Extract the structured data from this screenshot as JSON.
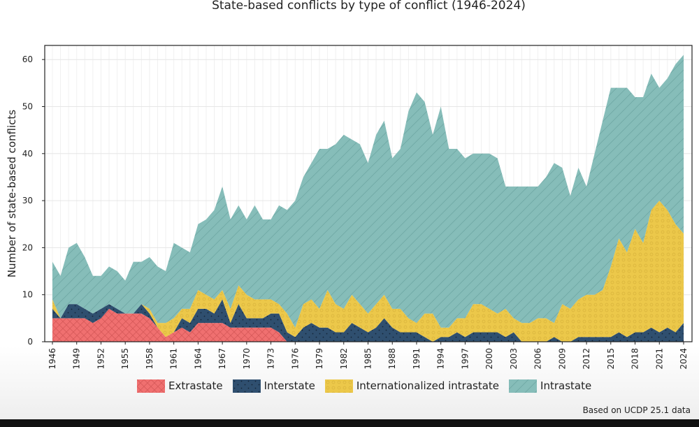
{
  "chart_data": {
    "type": "area",
    "stacked": true,
    "title": "State-based conflicts by type of conflict (1946-2024)",
    "xlabel": "",
    "ylabel": "Number of state-based conflicts",
    "x": [
      1946,
      1947,
      1948,
      1949,
      1950,
      1951,
      1952,
      1953,
      1954,
      1955,
      1956,
      1957,
      1958,
      1959,
      1960,
      1961,
      1962,
      1963,
      1964,
      1965,
      1966,
      1967,
      1968,
      1969,
      1970,
      1971,
      1972,
      1973,
      1974,
      1975,
      1976,
      1977,
      1978,
      1979,
      1980,
      1981,
      1982,
      1983,
      1984,
      1985,
      1986,
      1987,
      1988,
      1989,
      1990,
      1991,
      1992,
      1993,
      1994,
      1995,
      1996,
      1997,
      1998,
      1999,
      2000,
      2001,
      2002,
      2003,
      2004,
      2005,
      2006,
      2007,
      2008,
      2009,
      2010,
      2011,
      2012,
      2013,
      2014,
      2015,
      2016,
      2017,
      2018,
      2019,
      2020,
      2021,
      2022,
      2023,
      2024
    ],
    "ylim": [
      0,
      63
    ],
    "yticks": [
      0,
      10,
      20,
      30,
      40,
      50,
      60
    ],
    "xticks": [
      1946,
      1949,
      1952,
      1955,
      1958,
      1961,
      1964,
      1967,
      1970,
      1973,
      1976,
      1979,
      1982,
      1985,
      1988,
      1991,
      1994,
      1997,
      2000,
      2003,
      2006,
      2009,
      2012,
      2015,
      2018,
      2021,
      2024
    ],
    "grid": true,
    "legend_position": "bottom",
    "series": [
      {
        "name": "Extrastate",
        "color": "#f07070",
        "pattern": "crosshatch",
        "values": [
          5,
          5,
          5,
          5,
          5,
          4,
          5,
          7,
          6,
          6,
          6,
          6,
          5,
          3,
          1,
          2,
          3,
          2,
          4,
          4,
          4,
          4,
          3,
          3,
          3,
          3,
          3,
          3,
          2,
          0,
          0,
          0,
          0,
          0,
          0,
          0,
          0,
          0,
          0,
          0,
          0,
          0,
          0,
          0,
          0,
          0,
          0,
          0,
          0,
          0,
          0,
          0,
          0,
          0,
          0,
          0,
          0,
          0,
          0,
          0,
          0,
          0,
          0,
          0,
          0,
          0,
          0,
          0,
          0,
          0,
          0,
          0,
          0,
          0,
          0,
          0,
          0,
          0,
          0
        ]
      },
      {
        "name": "Interstate",
        "color": "#2f4f6f",
        "pattern": "dots",
        "values": [
          2,
          0,
          3,
          3,
          2,
          2,
          2,
          1,
          1,
          0,
          0,
          2,
          1,
          0,
          0,
          0,
          2,
          2,
          3,
          3,
          2,
          5,
          1,
          5,
          2,
          2,
          2,
          3,
          4,
          2,
          1,
          3,
          4,
          3,
          3,
          2,
          2,
          4,
          3,
          2,
          3,
          5,
          3,
          2,
          2,
          2,
          1,
          0,
          1,
          1,
          2,
          1,
          2,
          2,
          2,
          2,
          1,
          2,
          0,
          0,
          0,
          0,
          1,
          0,
          0,
          1,
          1,
          1,
          1,
          1,
          2,
          1,
          2,
          2,
          3,
          2,
          3,
          2,
          4
        ]
      },
      {
        "name": "Internationalized intrastate",
        "color": "#ecc84a",
        "pattern": "circles",
        "values": [
          2,
          0,
          0,
          0,
          0,
          0,
          0,
          0,
          0,
          0,
          0,
          0,
          1,
          1,
          3,
          3,
          2,
          3,
          4,
          3,
          3,
          2,
          3,
          4,
          5,
          4,
          4,
          3,
          2,
          4,
          2,
          5,
          5,
          4,
          8,
          6,
          5,
          6,
          5,
          4,
          5,
          5,
          4,
          5,
          3,
          2,
          5,
          6,
          2,
          2,
          3,
          4,
          6,
          6,
          5,
          4,
          6,
          3,
          4,
          4,
          5,
          5,
          3,
          8,
          7,
          8,
          9,
          9,
          10,
          15,
          20,
          18,
          22,
          19,
          25,
          28,
          25,
          23,
          19
        ]
      },
      {
        "name": "Intrastate",
        "color": "#86bdb9",
        "pattern": "diagonal",
        "values": [
          8,
          9,
          12,
          13,
          11,
          8,
          7,
          8,
          8,
          7,
          11,
          9,
          11,
          12,
          11,
          16,
          13,
          12,
          14,
          16,
          19,
          22,
          19,
          17,
          16,
          20,
          17,
          17,
          21,
          22,
          27,
          27,
          29,
          34,
          30,
          34,
          37,
          33,
          34,
          32,
          36,
          37,
          32,
          34,
          44,
          49,
          45,
          38,
          47,
          38,
          36,
          34,
          32,
          32,
          33,
          33,
          26,
          28,
          29,
          29,
          28,
          30,
          34,
          29,
          24,
          28,
          23,
          30,
          36,
          38,
          32,
          35,
          28,
          31,
          29,
          24,
          28,
          34,
          38
        ]
      }
    ]
  },
  "source_note": "Based on UCDP 25.1 data"
}
